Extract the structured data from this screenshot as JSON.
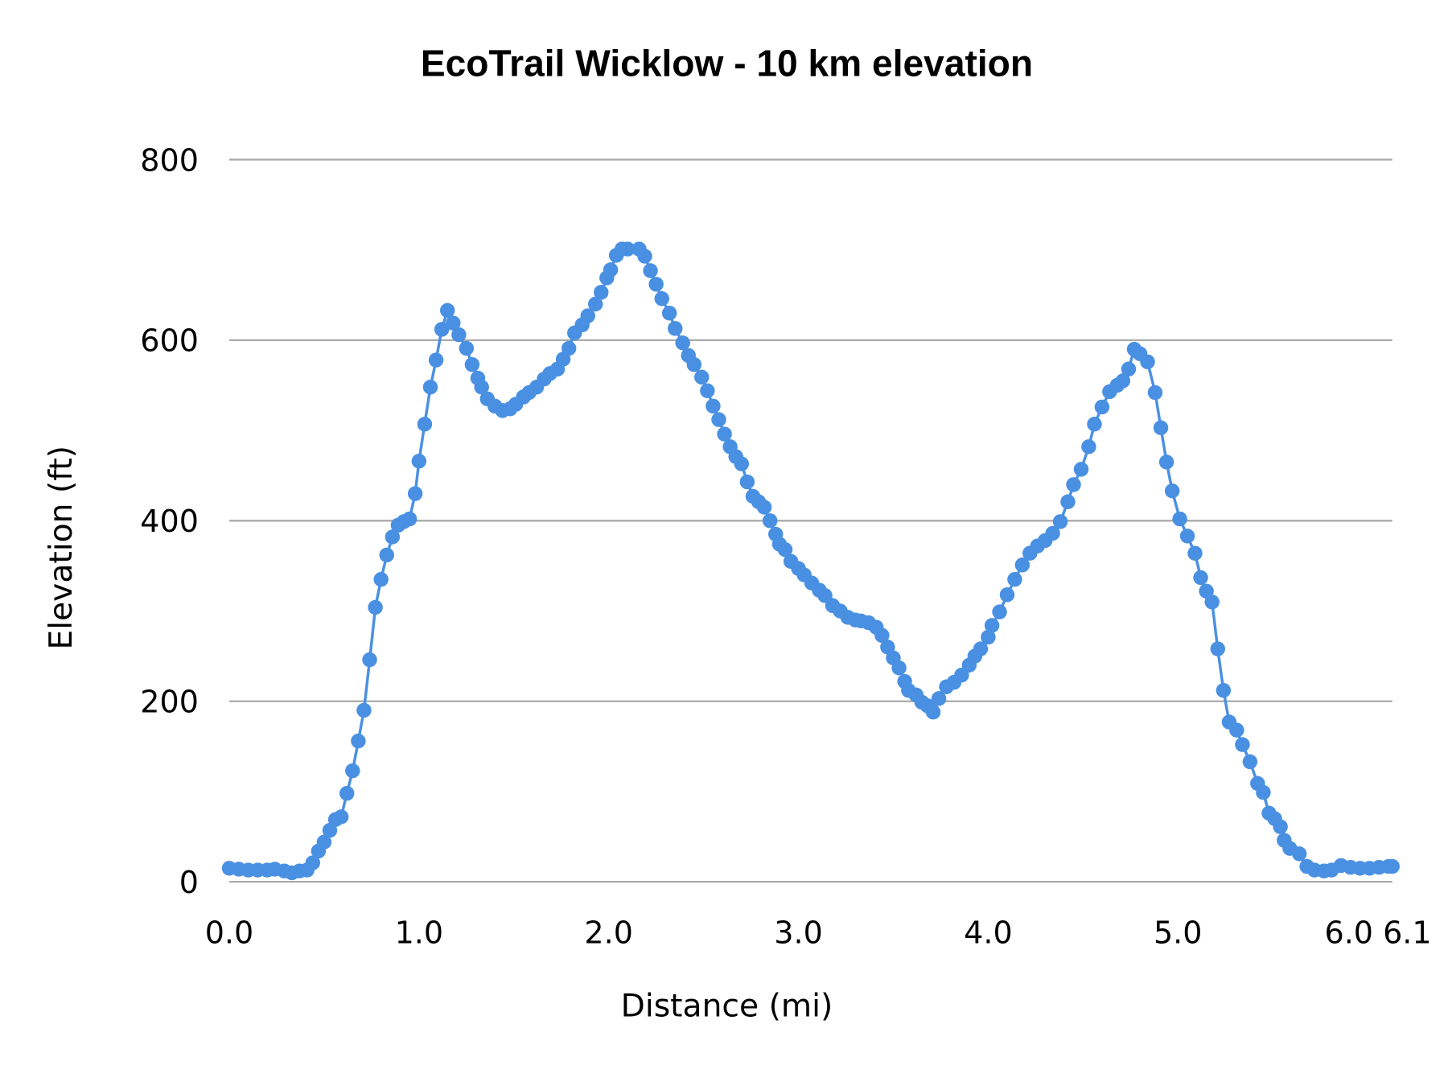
{
  "chart_data": {
    "type": "line",
    "title": "EcoTrail Wicklow - 10 km elevation",
    "xlabel": "Distance (mi)",
    "ylabel": "Elevation (ft)",
    "xlim": [
      0,
      6.13
    ],
    "ylim": [
      0,
      800
    ],
    "grid": true,
    "markers": true,
    "x_ticks": [
      "0.0",
      "1.0",
      "2.0",
      "3.0",
      "4.0",
      "5.0",
      "6.0",
      "6.1"
    ],
    "x_tick_values": [
      0,
      1,
      2,
      3,
      4,
      5,
      6,
      6.1
    ],
    "y_ticks": [
      "0",
      "200",
      "400",
      "600",
      "800"
    ],
    "y_tick_values": [
      0,
      200,
      400,
      600,
      800
    ],
    "color": "#4a90e2",
    "x": [
      0.0,
      0.05,
      0.1,
      0.15,
      0.2,
      0.24,
      0.29,
      0.33,
      0.37,
      0.41,
      0.44,
      0.47,
      0.5,
      0.53,
      0.56,
      0.59,
      0.62,
      0.65,
      0.68,
      0.71,
      0.74,
      0.77,
      0.8,
      0.83,
      0.86,
      0.89,
      0.92,
      0.95,
      0.98,
      1.0,
      1.03,
      1.06,
      1.09,
      1.12,
      1.15,
      1.18,
      1.21,
      1.25,
      1.28,
      1.31,
      1.33,
      1.36,
      1.4,
      1.44,
      1.48,
      1.51,
      1.55,
      1.58,
      1.62,
      1.66,
      1.69,
      1.73,
      1.76,
      1.79,
      1.82,
      1.86,
      1.89,
      1.93,
      1.96,
      1.99,
      2.01,
      2.04,
      2.07,
      2.1,
      2.16,
      2.19,
      2.22,
      2.25,
      2.28,
      2.32,
      2.35,
      2.39,
      2.42,
      2.45,
      2.49,
      2.52,
      2.55,
      2.58,
      2.61,
      2.64,
      2.67,
      2.7,
      2.73,
      2.76,
      2.79,
      2.82,
      2.85,
      2.88,
      2.9,
      2.93,
      2.96,
      3.0,
      3.03,
      3.07,
      3.11,
      3.14,
      3.18,
      3.22,
      3.26,
      3.3,
      3.33,
      3.37,
      3.41,
      3.44,
      3.47,
      3.5,
      3.53,
      3.56,
      3.58,
      3.62,
      3.65,
      3.68,
      3.71,
      3.74,
      3.78,
      3.82,
      3.86,
      3.9,
      3.93,
      3.96,
      4.0,
      4.02,
      4.06,
      4.1,
      4.14,
      4.18,
      4.22,
      4.26,
      4.3,
      4.34,
      4.38,
      4.42,
      4.45,
      4.49,
      4.53,
      4.56,
      4.6,
      4.64,
      4.68,
      4.71,
      4.74,
      4.77,
      4.8,
      4.84,
      4.88,
      4.91,
      4.94,
      4.97,
      5.01,
      5.05,
      5.09,
      5.12,
      5.15,
      5.18,
      5.21,
      5.24,
      5.27,
      5.31,
      5.34,
      5.38,
      5.42,
      5.45,
      5.48,
      5.51,
      5.54,
      5.56,
      5.59,
      5.64,
      5.68,
      5.72,
      5.77,
      5.81,
      5.86,
      5.91,
      5.96,
      6.01,
      6.06,
      6.11,
      6.13
    ],
    "y": [
      15,
      14,
      13,
      13,
      13,
      14,
      12,
      10,
      12,
      13,
      21,
      34,
      44,
      57,
      69,
      72,
      98,
      123,
      156,
      190,
      246,
      304,
      335,
      362,
      382,
      395,
      399,
      402,
      430,
      466,
      507,
      548,
      578,
      612,
      633,
      619,
      606,
      591,
      573,
      558,
      548,
      535,
      527,
      522,
      524,
      529,
      537,
      542,
      548,
      557,
      563,
      568,
      579,
      591,
      608,
      617,
      627,
      640,
      653,
      669,
      678,
      694,
      701,
      701,
      701,
      693,
      677,
      662,
      646,
      630,
      613,
      597,
      583,
      573,
      559,
      544,
      527,
      512,
      496,
      482,
      471,
      463,
      443,
      427,
      421,
      415,
      400,
      385,
      374,
      368,
      355,
      347,
      340,
      331,
      323,
      317,
      306,
      300,
      293,
      290,
      289,
      287,
      282,
      273,
      260,
      248,
      237,
      222,
      212,
      207,
      199,
      195,
      188,
      203,
      216,
      221,
      229,
      240,
      250,
      258,
      271,
      284,
      299,
      318,
      335,
      351,
      364,
      372,
      378,
      386,
      399,
      421,
      440,
      457,
      482,
      507,
      526,
      543,
      550,
      555,
      568,
      590,
      585,
      576,
      542,
      503,
      465,
      433,
      402,
      383,
      364,
      337,
      322,
      310,
      258,
      212,
      177,
      168,
      152,
      133,
      109,
      99,
      76,
      70,
      61,
      46,
      37,
      31,
      17,
      13,
      12,
      13,
      18,
      16,
      15,
      15,
      16,
      17,
      17
    ]
  }
}
